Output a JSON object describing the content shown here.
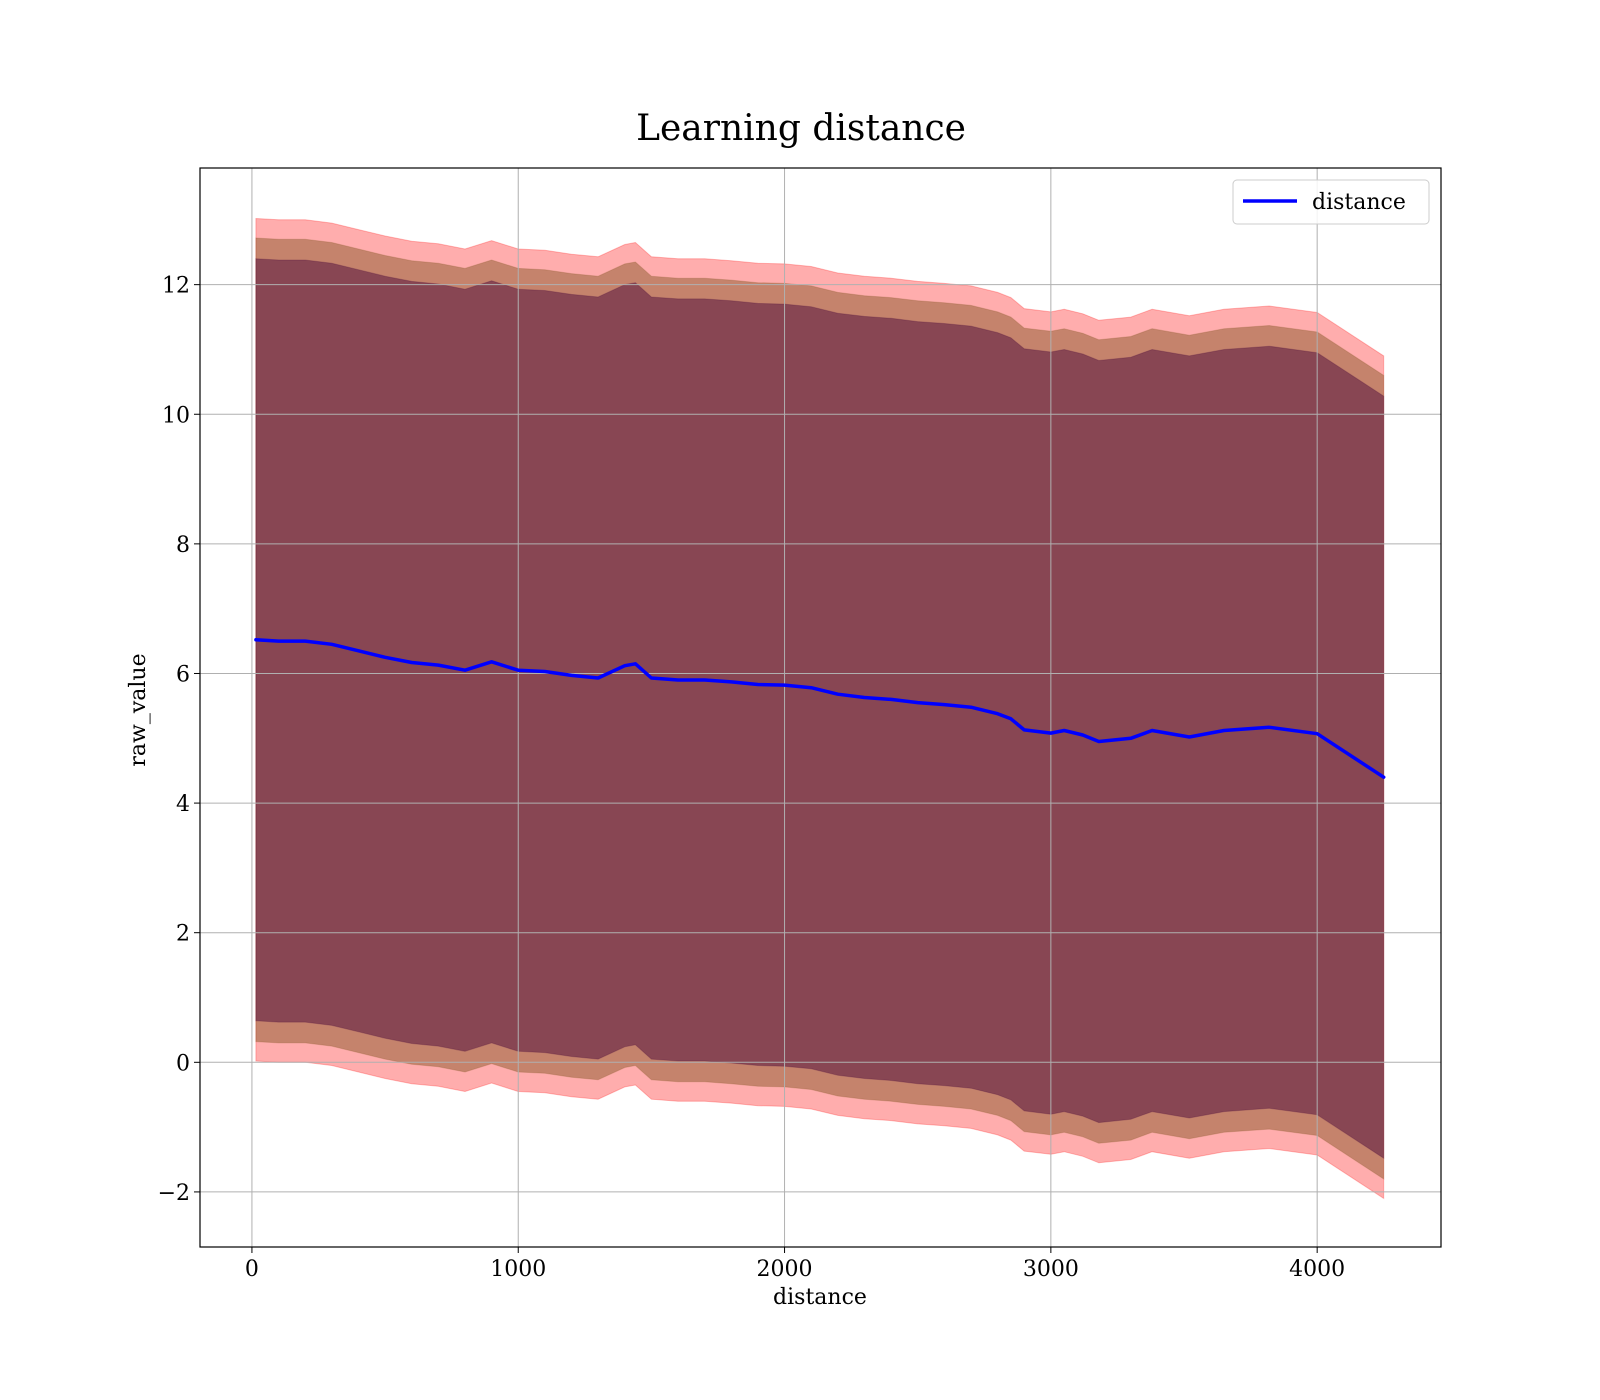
{
  "chart_data": {
    "type": "line",
    "title": "Learning distance",
    "xlabel": "distance",
    "ylabel": "raw_value",
    "xlim": [
      -195,
      4465
    ],
    "ylim": [
      -2.85,
      13.8
    ],
    "xticks": [
      0,
      1000,
      2000,
      3000,
      4000
    ],
    "xtick_labels": [
      "0",
      "1000",
      "2000",
      "3000",
      "4000"
    ],
    "yticks": [
      -2,
      0,
      2,
      4,
      6,
      8,
      10,
      12
    ],
    "ytick_labels": [
      "−2",
      "0",
      "2",
      "4",
      "6",
      "8",
      "10",
      "12"
    ],
    "grid": true,
    "legend": {
      "position": "top-right",
      "entries": [
        "distance"
      ]
    },
    "colors": {
      "line": "#0000ff",
      "band_outer": "#ff0000",
      "band_middle": "#8b5a2b",
      "band_inner": "#4b0a3a"
    },
    "x": [
      15,
      100,
      200,
      300,
      400,
      500,
      600,
      700,
      800,
      900,
      1000,
      1100,
      1200,
      1300,
      1400,
      1440,
      1500,
      1600,
      1700,
      1800,
      1900,
      2000,
      2100,
      2200,
      2300,
      2400,
      2500,
      2600,
      2700,
      2800,
      2850,
      2900,
      3000,
      3050,
      3120,
      3180,
      3300,
      3380,
      3520,
      3650,
      3820,
      4000,
      4250
    ],
    "series": [
      {
        "name": "distance",
        "values": [
          6.52,
          6.5,
          6.5,
          6.45,
          6.35,
          6.25,
          6.17,
          6.13,
          6.05,
          6.18,
          6.05,
          6.03,
          5.97,
          5.93,
          6.12,
          6.15,
          5.93,
          5.9,
          5.9,
          5.87,
          5.83,
          5.82,
          5.78,
          5.68,
          5.63,
          5.6,
          5.55,
          5.52,
          5.48,
          5.38,
          5.3,
          5.13,
          5.08,
          5.12,
          5.05,
          4.95,
          5.0,
          5.12,
          5.02,
          5.12,
          5.17,
          5.07,
          4.4
        ]
      }
    ],
    "bands": [
      {
        "level": "outer",
        "half_width": 6.5
      },
      {
        "level": "middle",
        "half_width": 6.2
      },
      {
        "level": "inner",
        "half_width": 5.88
      }
    ]
  }
}
